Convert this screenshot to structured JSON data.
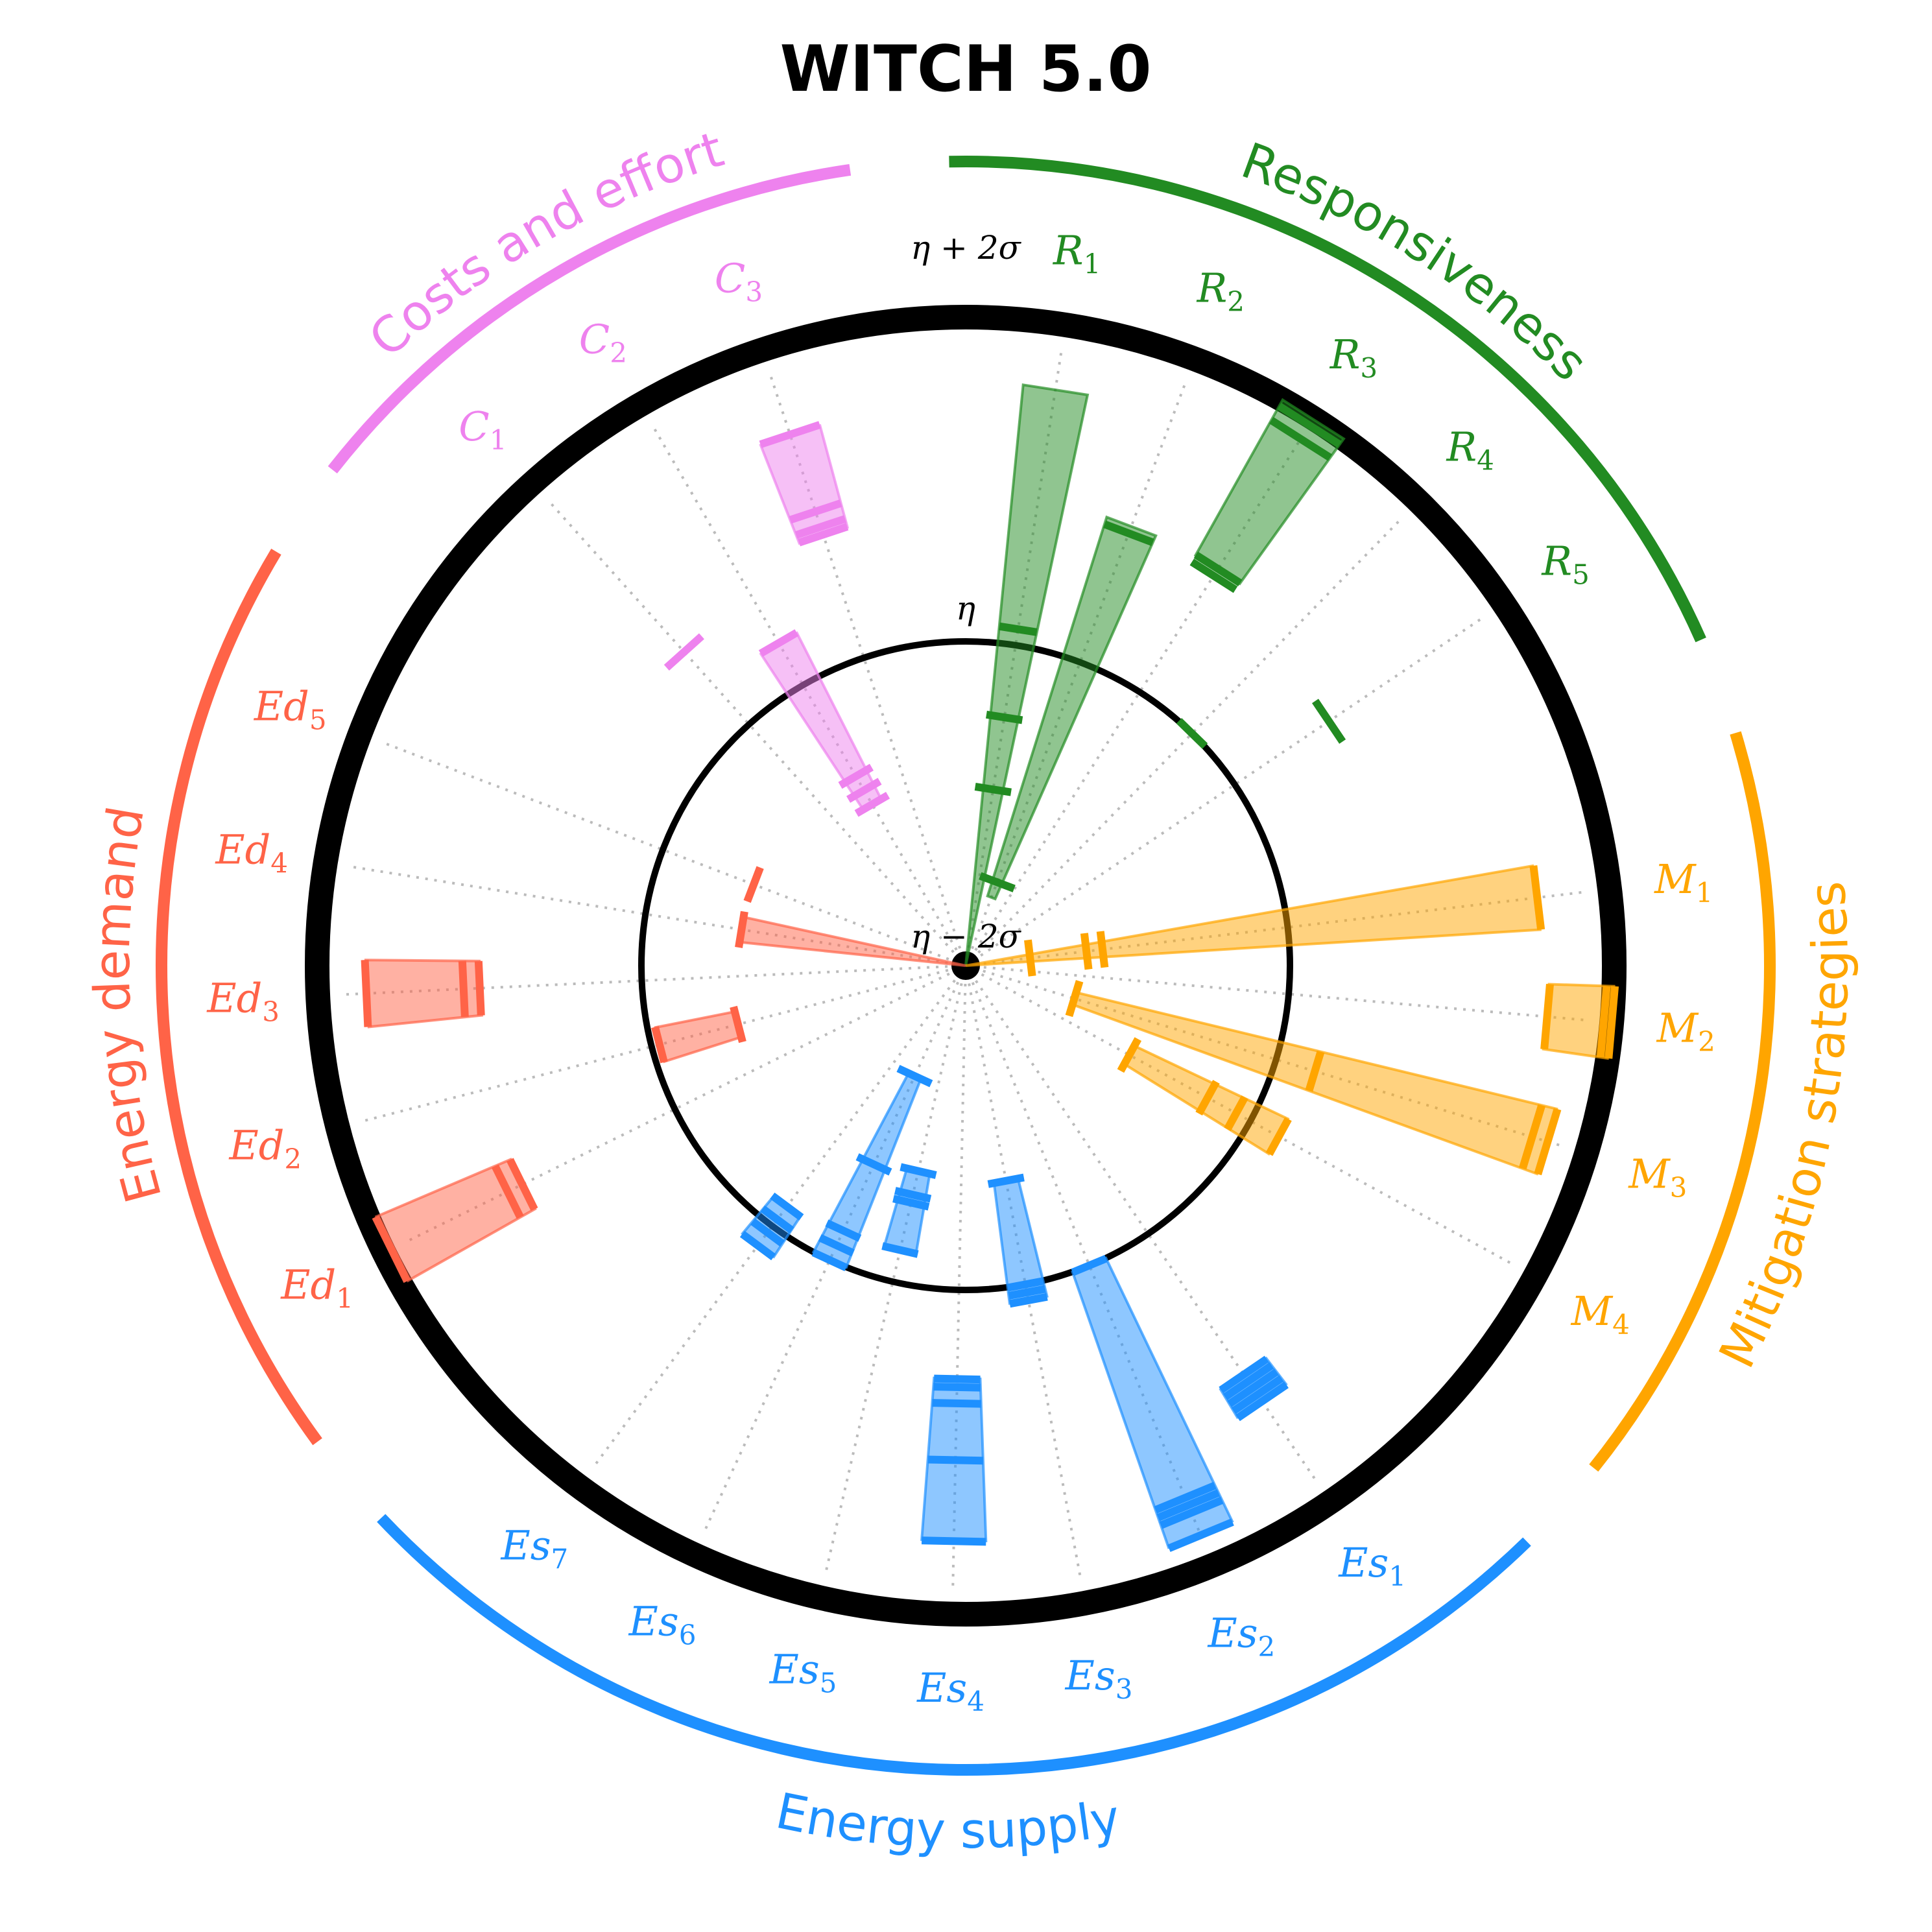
{
  "title": "WITCH 5.0",
  "chart_data": {
    "type": "radial-range",
    "reference_rings": [
      {
        "label": "η − 2σ",
        "value": -2
      },
      {
        "label": "η",
        "value": 0
      },
      {
        "label": "η + 2σ",
        "value": 2
      }
    ],
    "groups": [
      {
        "name": "Responsiveness",
        "color": "#228B22",
        "indicators": [
          "R1",
          "R2",
          "R3",
          "R4",
          "R5"
        ]
      },
      {
        "name": "Mitigation strategies",
        "color": "#FFA500",
        "indicators": [
          "M1",
          "M2",
          "M3",
          "M4"
        ]
      },
      {
        "name": "Energy supply",
        "color": "#1E90FF",
        "indicators": [
          "Es1",
          "Es2",
          "Es3",
          "Es4",
          "Es5",
          "Es6",
          "Es7"
        ]
      },
      {
        "name": "Energy demand",
        "color": "#FF6347",
        "indicators": [
          "Ed1",
          "Ed2",
          "Ed3",
          "Ed4",
          "Ed5"
        ]
      },
      {
        "name": "Costs and effort",
        "color": "#EE82EE",
        "indicators": [
          "C1",
          "C2",
          "C3"
        ]
      }
    ],
    "indicators": [
      {
        "id": "R1",
        "base": "R",
        "sub": "1",
        "group": "Responsiveness",
        "range": [
          -2.0,
          1.6
        ],
        "ticks": [
          -0.9,
          -0.45,
          0.1
        ]
      },
      {
        "id": "R2",
        "base": "R",
        "sub": "2",
        "group": "Responsiveness",
        "range": [
          -1.55,
          0.9
        ],
        "ticks": [
          -1.45,
          0.85
        ]
      },
      {
        "id": "R3",
        "base": "R",
        "sub": "3",
        "group": "Responsiveness",
        "range": [
          0.9,
          2.0
        ],
        "ticks": [
          0.85,
          0.9,
          1.85,
          1.95
        ]
      },
      {
        "id": "R4",
        "base": "R",
        "sub": "4",
        "group": "Responsiveness",
        "range": [
          0.0,
          0.0
        ],
        "ticks": [
          0.0
        ]
      },
      {
        "id": "R5",
        "base": "R",
        "sub": "5",
        "group": "Responsiveness",
        "range": [
          0.7,
          0.7
        ],
        "ticks": [
          0.7
        ]
      },
      {
        "id": "M1",
        "base": "M",
        "sub": "1",
        "group": "Mitigation strategies",
        "range": [
          -2.0,
          1.55
        ],
        "ticks": [
          -1.6,
          -1.25,
          -1.15,
          1.55
        ]
      },
      {
        "id": "M2",
        "base": "M",
        "sub": "2",
        "group": "Mitigation strategies",
        "range": [
          1.6,
          2.0
        ],
        "ticks": [
          1.6,
          1.95,
          2.0
        ]
      },
      {
        "id": "M3",
        "base": "M",
        "sub": "3",
        "group": "Mitigation strategies",
        "range": [
          -1.3,
          1.75
        ],
        "ticks": [
          -1.3,
          0.25,
          1.65,
          1.75
        ]
      },
      {
        "id": "M4",
        "base": "M",
        "sub": "4",
        "group": "Mitigation strategies",
        "range": [
          -0.85,
          0.2
        ],
        "ticks": [
          -0.85,
          -0.3,
          -0.1,
          0.2
        ]
      },
      {
        "id": "Es1",
        "base": "Es",
        "sub": "1",
        "group": "Energy supply",
        "range": [
          1.05,
          1.25
        ],
        "ticks": [
          1.05,
          1.1,
          1.15,
          1.2,
          1.25
        ]
      },
      {
        "id": "Es2",
        "base": "Es",
        "sub": "2",
        "group": "Energy supply",
        "range": [
          0.0,
          1.8
        ],
        "ticks": [
          0.0,
          1.55,
          1.6,
          1.65,
          1.8
        ]
      },
      {
        "id": "Es3",
        "base": "Es",
        "sub": "3",
        "group": "Energy supply",
        "range": [
          -0.65,
          0.1
        ],
        "ticks": [
          -0.65,
          0.0,
          0.05,
          0.1
        ]
      },
      {
        "id": "Es4",
        "base": "Es",
        "sub": "4",
        "group": "Energy supply",
        "range": [
          0.55,
          1.55
        ],
        "ticks": [
          0.55,
          0.6,
          0.7,
          1.05,
          1.55
        ]
      },
      {
        "id": "Es5",
        "base": "Es",
        "sub": "5",
        "group": "Energy supply",
        "range": [
          -0.7,
          -0.2
        ],
        "ticks": [
          -0.7,
          -0.55,
          -0.5,
          -0.2
        ]
      },
      {
        "id": "Es6",
        "base": "Es",
        "sub": "6",
        "group": "Energy supply",
        "range": [
          -1.25,
          0.0
        ],
        "ticks": [
          -1.25,
          -0.65,
          -0.2,
          -0.1,
          0.0
        ]
      },
      {
        "id": "Es7",
        "base": "Es",
        "sub": "7",
        "group": "Energy supply",
        "range": [
          -0.15,
          0.15
        ],
        "ticks": [
          -0.15,
          -0.05,
          0.05,
          0.15
        ]
      },
      {
        "id": "Ed1",
        "base": "Ed",
        "sub": "1",
        "group": "Energy demand",
        "range": [
          1.05,
          1.95
        ],
        "ticks": [
          1.05,
          1.15,
          1.95
        ]
      },
      {
        "id": "Ed2",
        "base": "Ed",
        "sub": "2",
        "group": "Energy demand",
        "range": [
          -0.55,
          -0.05
        ],
        "ticks": [
          -0.55,
          -0.05
        ]
      },
      {
        "id": "Ed3",
        "base": "Ed",
        "sub": "3",
        "group": "Energy demand",
        "range": [
          1.0,
          1.7
        ],
        "ticks": [
          1.0,
          1.1,
          1.7
        ]
      },
      {
        "id": "Ed4",
        "base": "Ed",
        "sub": "4",
        "group": "Energy demand",
        "range": [
          -2.0,
          -0.6
        ],
        "ticks": [
          -0.6
        ]
      },
      {
        "id": "Ed5",
        "base": "Ed",
        "sub": "5",
        "group": "Energy demand",
        "range": [
          -0.6,
          -0.6
        ],
        "ticks": [
          -0.6
        ]
      },
      {
        "id": "C1",
        "base": "C",
        "sub": "1",
        "group": "Costs and effort",
        "range": [
          0.6,
          0.6
        ],
        "ticks": [
          0.6
        ]
      },
      {
        "id": "C2",
        "base": "C",
        "sub": "2",
        "group": "Costs and effort",
        "range": [
          -0.85,
          0.3
        ],
        "ticks": [
          -0.85,
          -0.75,
          -0.65,
          0.3
        ]
      },
      {
        "id": "C3",
        "base": "C",
        "sub": "3",
        "group": "Costs and effort",
        "range": [
          0.8,
          1.45
        ],
        "ticks": [
          0.8,
          0.85,
          0.95,
          1.45
        ]
      }
    ]
  }
}
